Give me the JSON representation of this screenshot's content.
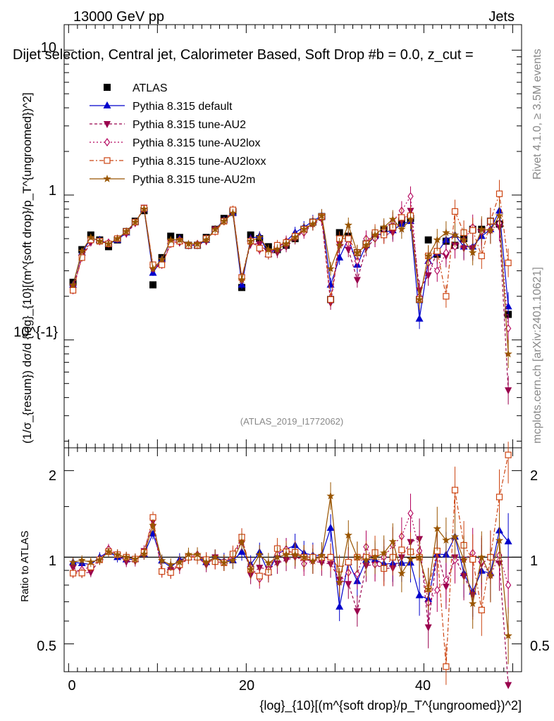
{
  "header": {
    "energy_label": "13000 GeV pp",
    "category_label": "Jets",
    "selection_title": "Dijet selection, Central jet, Calorimeter Based, Soft Drop #b = 0.0, z_cut =",
    "side_rivet": "Rivet 4.1.0, ≥ 3.5M events",
    "side_mcplots": "mcplots.cern.ch [arXiv:2401.10621]",
    "analysis_id": "(ATLAS_2019_I1772062)"
  },
  "axes": {
    "top_ylabel": "(1/σ_{resum}) dσ/d {log}_{10}[(m^{soft drop}/p_T^{ungroomed})^2]",
    "ratio_ylabel": "Ratio to ATLAS",
    "xlabel": "{log}_{10}[(m^{soft drop}/p_T^{ungroomed})^2]",
    "top_yticks": [
      "10^{-1}",
      "1",
      "10"
    ],
    "ratio_yticks": [
      "0.5",
      "1",
      "2"
    ],
    "xticks": [
      "0",
      "20",
      "40"
    ]
  },
  "legend": [
    {
      "label": "ATLAS",
      "marker": "square-filled",
      "color": "#000000"
    },
    {
      "label": "Pythia 8.315 default",
      "marker": "triangle-up",
      "color": "#0000cc"
    },
    {
      "label": "Pythia 8.315 tune-AU2",
      "marker": "triangle-down",
      "color": "#99004d"
    },
    {
      "label": "Pythia 8.315 tune-AU2lox",
      "marker": "diamond-open",
      "color": "#b2005c"
    },
    {
      "label": "Pythia 8.315 tune-AU2loxx",
      "marker": "square-open",
      "color": "#cc4411"
    },
    {
      "label": "Pythia 8.315 tune-AU2m",
      "marker": "star",
      "color": "#995500"
    }
  ],
  "chart_data": {
    "type": "scatter",
    "title": "Dijet selection, Central jet, Calorimeter Based, Soft Drop #b = 0.0, z_cut =",
    "xlabel": "{log}_{10}[(m^{soft drop}/p_T^{ungroomed})^2]",
    "ylabel": "(1/σ_{resum}) dσ/d {log}_{10}[(m^{soft drop}/p_T^{ungroomed})^2]",
    "xlim": [
      -0.5,
      51
    ],
    "ylim": [
      0.018,
      15
    ],
    "yscale": "log",
    "ratio_ylim": [
      0.4,
      2.4
    ],
    "x": [
      0.5,
      1.5,
      2.5,
      3.5,
      4.5,
      5.5,
      6.5,
      7.5,
      8.5,
      9.5,
      10.5,
      11.5,
      12.5,
      13.5,
      14.5,
      15.5,
      16.5,
      17.5,
      18.5,
      19.5,
      20.5,
      21.5,
      22.5,
      23.5,
      24.5,
      25.5,
      26.5,
      27.5,
      28.5,
      29.5,
      30.5,
      31.5,
      32.5,
      33.5,
      34.5,
      35.5,
      36.5,
      37.5,
      38.5,
      39.5,
      40.5,
      41.5,
      42.5,
      43.5,
      44.5,
      45.5,
      46.5,
      47.5,
      48.5,
      49.5
    ],
    "series": [
      {
        "name": "ATLAS",
        "values": [
          0.25,
          0.42,
          0.53,
          0.49,
          0.44,
          0.49,
          0.56,
          0.66,
          0.78,
          0.24,
          0.37,
          0.52,
          0.51,
          0.45,
          0.45,
          0.51,
          0.58,
          0.69,
          0.77,
          0.23,
          0.53,
          0.5,
          0.44,
          0.42,
          0.45,
          0.5,
          0.58,
          0.65,
          0.71,
          0.19,
          0.55,
          0.52,
          0.4,
          0.46,
          0.53,
          0.58,
          0.6,
          0.66,
          0.69,
          0.19,
          0.49,
          0.39,
          0.48,
          0.45,
          0.5,
          0.58,
          0.58,
          0.66,
          0.63,
          0.15
        ]
      },
      {
        "name": "Pythia 8.315 default",
        "values": [
          0.24,
          0.4,
          0.5,
          0.49,
          0.46,
          0.49,
          0.55,
          0.65,
          0.8,
          0.29,
          0.36,
          0.48,
          0.5,
          0.45,
          0.45,
          0.49,
          0.58,
          0.67,
          0.75,
          0.24,
          0.5,
          0.52,
          0.39,
          0.43,
          0.48,
          0.55,
          0.6,
          0.66,
          0.72,
          0.24,
          0.37,
          0.5,
          0.33,
          0.45,
          0.52,
          0.55,
          0.57,
          0.63,
          0.66,
          0.14,
          0.35,
          0.4,
          0.49,
          0.53,
          0.44,
          0.44,
          0.52,
          0.58,
          0.78,
          0.17
        ]
      },
      {
        "name": "Pythia 8.315 tune-AU2",
        "values": [
          0.23,
          0.37,
          0.47,
          0.48,
          0.46,
          0.5,
          0.54,
          0.64,
          0.82,
          0.32,
          0.33,
          0.47,
          0.47,
          0.45,
          0.45,
          0.48,
          0.58,
          0.66,
          0.77,
          0.27,
          0.46,
          0.46,
          0.4,
          0.4,
          0.44,
          0.5,
          0.57,
          0.63,
          0.68,
          0.18,
          0.46,
          0.42,
          0.26,
          0.43,
          0.5,
          0.53,
          0.55,
          0.66,
          0.78,
          0.22,
          0.28,
          0.41,
          0.38,
          0.45,
          0.43,
          0.43,
          0.55,
          0.66,
          0.6,
          0.045
        ]
      },
      {
        "name": "Pythia 8.315 tune-AU2lox",
        "values": [
          0.22,
          0.38,
          0.49,
          0.48,
          0.47,
          0.5,
          0.56,
          0.65,
          0.8,
          0.31,
          0.33,
          0.46,
          0.49,
          0.45,
          0.46,
          0.5,
          0.56,
          0.66,
          0.78,
          0.26,
          0.49,
          0.42,
          0.4,
          0.43,
          0.48,
          0.51,
          0.55,
          0.63,
          0.7,
          0.19,
          0.45,
          0.46,
          0.35,
          0.5,
          0.5,
          0.58,
          0.66,
          0.78,
          0.98,
          0.2,
          0.34,
          0.3,
          0.4,
          0.44,
          0.49,
          0.6,
          0.56,
          0.57,
          0.64,
          0.12
        ]
      },
      {
        "name": "Pythia 8.315 tune-AU2loxx",
        "values": [
          0.22,
          0.37,
          0.49,
          0.48,
          0.46,
          0.5,
          0.56,
          0.65,
          0.81,
          0.33,
          0.33,
          0.46,
          0.48,
          0.45,
          0.45,
          0.5,
          0.56,
          0.66,
          0.79,
          0.27,
          0.48,
          0.43,
          0.39,
          0.45,
          0.47,
          0.52,
          0.58,
          0.65,
          0.71,
          0.19,
          0.5,
          0.5,
          0.4,
          0.46,
          0.55,
          0.53,
          0.6,
          0.7,
          0.72,
          0.19,
          0.38,
          0.41,
          0.2,
          0.77,
          0.55,
          0.57,
          0.38,
          0.66,
          1.02,
          0.34
        ]
      },
      {
        "name": "Pythia 8.315 tune-AU2m",
        "values": [
          0.24,
          0.41,
          0.51,
          0.48,
          0.46,
          0.5,
          0.56,
          0.65,
          0.8,
          0.31,
          0.36,
          0.49,
          0.49,
          0.46,
          0.46,
          0.49,
          0.58,
          0.66,
          0.75,
          0.26,
          0.48,
          0.51,
          0.42,
          0.42,
          0.46,
          0.51,
          0.58,
          0.63,
          0.72,
          0.31,
          0.45,
          0.62,
          0.4,
          0.45,
          0.53,
          0.6,
          0.68,
          0.58,
          0.68,
          0.19,
          0.38,
          0.49,
          0.55,
          0.53,
          0.49,
          0.4,
          0.58,
          0.57,
          0.72,
          0.08
        ]
      }
    ]
  }
}
